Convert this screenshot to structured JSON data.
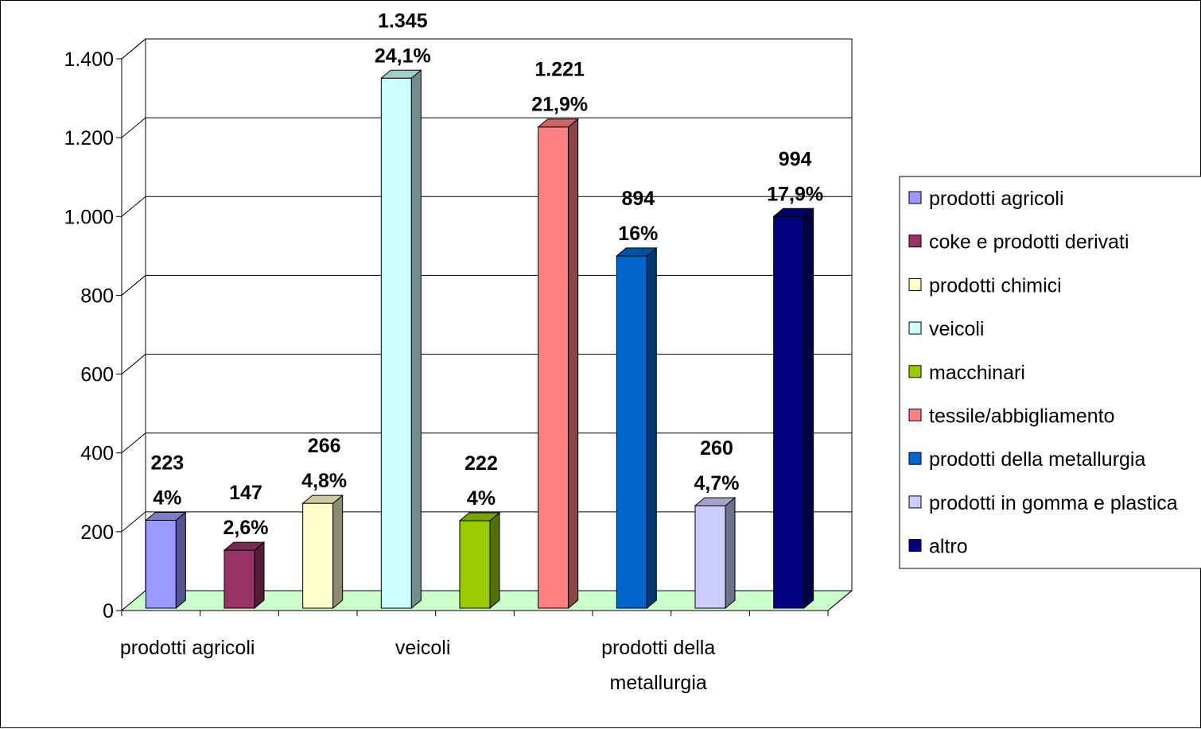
{
  "chart_data": {
    "type": "bar",
    "categories": [
      "prodotti agricoli",
      "coke e prodotti derivati",
      "prodotti chimici",
      "veicoli",
      "macchinari",
      "tessile/abbigliamento",
      "prodotti della metallurgia",
      "prodotti in gomma e plastica",
      "altro"
    ],
    "values": [
      223,
      147,
      266,
      1345,
      222,
      1221,
      894,
      260,
      994
    ],
    "value_labels": [
      "223",
      "147",
      "266",
      "1.345",
      "222",
      "1.221",
      "894",
      "260",
      "994"
    ],
    "percent_labels": [
      "4%",
      "2,6%",
      "4,8%",
      "24,1%",
      "4%",
      "21,9%",
      "16%",
      "4,7%",
      "17,9%"
    ],
    "colors": [
      "#9999ff",
      "#993366",
      "#ffffcc",
      "#ccffff",
      "#99cc00",
      "#ff8080",
      "#0066cc",
      "#ccccff",
      "#000080"
    ],
    "floor_color": "#ccffcc",
    "ylim": [
      0,
      1400
    ],
    "yticks": [
      {
        "v": 0,
        "label": "0"
      },
      {
        "v": 200,
        "label": "200"
      },
      {
        "v": 400,
        "label": "400"
      },
      {
        "v": 600,
        "label": "600"
      },
      {
        "v": 800,
        "label": "800"
      },
      {
        "v": 1000,
        "label": "1.000"
      },
      {
        "v": 1200,
        "label": "1.200"
      },
      {
        "v": 1400,
        "label": "1.400"
      }
    ],
    "xtick_labels": [
      {
        "index": 0,
        "lines": [
          "prodotti agricoli"
        ]
      },
      {
        "index": 3,
        "lines": [
          "veicoli"
        ]
      },
      {
        "index": 6,
        "lines": [
          "prodotti della",
          "metallurgia"
        ]
      }
    ],
    "legend": {
      "position": "right",
      "entries": [
        "prodotti agricoli",
        "coke e prodotti derivati",
        "prodotti chimici",
        "veicoli",
        "macchinari",
        "tessile/abbigliamento",
        "prodotti della metallurgia",
        "prodotti in gomma e plastica",
        "altro"
      ]
    },
    "grid": true,
    "title": "",
    "xlabel": "",
    "ylabel": ""
  }
}
